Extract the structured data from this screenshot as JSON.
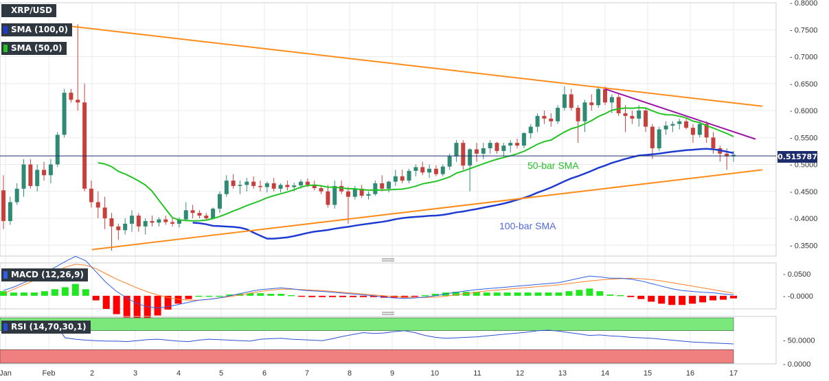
{
  "legend": {
    "symbol": "XRP/USD",
    "sma100": "SMA (100,0)",
    "sma50": "SMA (50,0)",
    "macd": "MACD (12,26,9)",
    "rsi": "RSI (14,70,30,1)"
  },
  "colors": {
    "bull": "#2f8a74",
    "bear": "#c7413c",
    "sma50": "#22c322",
    "sma100": "#1e3bd1",
    "trend": "#ff8c1a",
    "resistance": "#9b14a5",
    "macd_line": "#2d5fe0",
    "signal_line": "#ff7f24",
    "hist_pos": "#22e622",
    "hist_neg": "#ff0000",
    "rsi_line": "#2a4fd0",
    "rsi_overbought": "#7be87b",
    "rsi_oversold": "#f08080"
  },
  "current_price": "0.515787",
  "chart_data": [
    {
      "type": "candlestick",
      "title": "XRP/USD",
      "x_tick_labels": [
        "Jan",
        "Feb",
        "2",
        "3",
        "4",
        "5",
        "6",
        "7",
        "8",
        "9",
        "10",
        "11",
        "12",
        "13",
        "14",
        "15",
        "16",
        "17"
      ],
      "y_tick_labels": [
        "0.3500",
        "0.4000",
        "0.4500",
        "0.5000",
        "0.5500",
        "0.6000",
        "0.6500",
        "0.7000",
        "0.7500",
        "0.8000"
      ],
      "ylim": [
        0.33,
        0.8
      ],
      "candles": [
        [
          0.452,
          0.48,
          0.38,
          0.395
        ],
        [
          0.395,
          0.44,
          0.388,
          0.43
        ],
        [
          0.43,
          0.465,
          0.425,
          0.455
        ],
        [
          0.455,
          0.51,
          0.44,
          0.5
        ],
        [
          0.5,
          0.51,
          0.455,
          0.46
        ],
        [
          0.46,
          0.5,
          0.45,
          0.49
        ],
        [
          0.49,
          0.505,
          0.47,
          0.48
        ],
        [
          0.48,
          0.51,
          0.465,
          0.5
        ],
        [
          0.5,
          0.56,
          0.495,
          0.555
        ],
        [
          0.555,
          0.64,
          0.55,
          0.633
        ],
        [
          0.633,
          0.64,
          0.615,
          0.62
        ],
        [
          0.62,
          0.76,
          0.6,
          0.615
        ],
        [
          0.615,
          0.65,
          0.45,
          0.455
        ],
        [
          0.455,
          0.47,
          0.42,
          0.43
        ],
        [
          0.43,
          0.45,
          0.4,
          0.42
        ],
        [
          0.42,
          0.44,
          0.38,
          0.4
        ],
        [
          0.4,
          0.41,
          0.34,
          0.385
        ],
        [
          0.385,
          0.39,
          0.36,
          0.378
        ],
        [
          0.378,
          0.4,
          0.37,
          0.39
        ],
        [
          0.39,
          0.415,
          0.375,
          0.405
        ],
        [
          0.405,
          0.41,
          0.375,
          0.385
        ],
        [
          0.385,
          0.4,
          0.37,
          0.395
        ],
        [
          0.395,
          0.405,
          0.385,
          0.392
        ],
        [
          0.392,
          0.402,
          0.385,
          0.398
        ],
        [
          0.398,
          0.405,
          0.388,
          0.393
        ],
        [
          0.393,
          0.4,
          0.385,
          0.39
        ],
        [
          0.39,
          0.402,
          0.383,
          0.398
        ],
        [
          0.398,
          0.43,
          0.395,
          0.415
        ],
        [
          0.415,
          0.425,
          0.4,
          0.41
        ],
        [
          0.41,
          0.415,
          0.4,
          0.405
        ],
        [
          0.405,
          0.41,
          0.398,
          0.4
        ],
        [
          0.4,
          0.42,
          0.398,
          0.418
        ],
        [
          0.418,
          0.45,
          0.41,
          0.445
        ],
        [
          0.445,
          0.48,
          0.44,
          0.47
        ],
        [
          0.47,
          0.482,
          0.455,
          0.46
        ],
        [
          0.46,
          0.47,
          0.445,
          0.462
        ],
        [
          0.462,
          0.475,
          0.45,
          0.468
        ],
        [
          0.468,
          0.478,
          0.455,
          0.46
        ],
        [
          0.46,
          0.47,
          0.45,
          0.458
        ],
        [
          0.458,
          0.468,
          0.448,
          0.465
        ],
        [
          0.465,
          0.475,
          0.45,
          0.455
        ],
        [
          0.455,
          0.465,
          0.448,
          0.462
        ],
        [
          0.462,
          0.47,
          0.452,
          0.458
        ],
        [
          0.458,
          0.466,
          0.45,
          0.461
        ],
        [
          0.461,
          0.472,
          0.455,
          0.468
        ],
        [
          0.468,
          0.474,
          0.458,
          0.462
        ],
        [
          0.462,
          0.47,
          0.452,
          0.456
        ],
        [
          0.456,
          0.462,
          0.445,
          0.45
        ],
        [
          0.45,
          0.462,
          0.42,
          0.425
        ],
        [
          0.425,
          0.47,
          0.418,
          0.46
        ],
        [
          0.46,
          0.47,
          0.445,
          0.45
        ],
        [
          0.45,
          0.458,
          0.39,
          0.44
        ],
        [
          0.44,
          0.46,
          0.435,
          0.455
        ],
        [
          0.455,
          0.462,
          0.438,
          0.442
        ],
        [
          0.442,
          0.45,
          0.435,
          0.445
        ],
        [
          0.445,
          0.47,
          0.442,
          0.465
        ],
        [
          0.465,
          0.48,
          0.45,
          0.455
        ],
        [
          0.455,
          0.47,
          0.448,
          0.468
        ],
        [
          0.468,
          0.49,
          0.46,
          0.478
        ],
        [
          0.478,
          0.49,
          0.465,
          0.47
        ],
        [
          0.47,
          0.492,
          0.465,
          0.488
        ],
        [
          0.488,
          0.5,
          0.478,
          0.495
        ],
        [
          0.495,
          0.505,
          0.48,
          0.485
        ],
        [
          0.485,
          0.5,
          0.475,
          0.492
        ],
        [
          0.492,
          0.498,
          0.478,
          0.482
        ],
        [
          0.482,
          0.5,
          0.478,
          0.496
        ],
        [
          0.496,
          0.52,
          0.49,
          0.515
        ],
        [
          0.515,
          0.545,
          0.505,
          0.54
        ],
        [
          0.54,
          0.545,
          0.49,
          0.498
        ],
        [
          0.498,
          0.53,
          0.45,
          0.528
        ],
        [
          0.528,
          0.54,
          0.505,
          0.52
        ],
        [
          0.52,
          0.54,
          0.51,
          0.53
        ],
        [
          0.53,
          0.545,
          0.52,
          0.54
        ],
        [
          0.54,
          0.542,
          0.52,
          0.525
        ],
        [
          0.525,
          0.54,
          0.515,
          0.535
        ],
        [
          0.535,
          0.545,
          0.522,
          0.54
        ],
        [
          0.54,
          0.548,
          0.53,
          0.535
        ],
        [
          0.535,
          0.56,
          0.53,
          0.558
        ],
        [
          0.558,
          0.575,
          0.548,
          0.57
        ],
        [
          0.57,
          0.595,
          0.56,
          0.59
        ],
        [
          0.59,
          0.6,
          0.575,
          0.585
        ],
        [
          0.585,
          0.595,
          0.57,
          0.58
        ],
        [
          0.58,
          0.61,
          0.575,
          0.605
        ],
        [
          0.605,
          0.645,
          0.6,
          0.63
        ],
        [
          0.63,
          0.64,
          0.6,
          0.605
        ],
        [
          0.605,
          0.61,
          0.54,
          0.58
        ],
        [
          0.58,
          0.62,
          0.56,
          0.615
        ],
        [
          0.615,
          0.63,
          0.6,
          0.61
        ],
        [
          0.61,
          0.645,
          0.605,
          0.64
        ],
        [
          0.64,
          0.645,
          0.61,
          0.615
        ],
        [
          0.615,
          0.63,
          0.595,
          0.625
        ],
        [
          0.625,
          0.63,
          0.59,
          0.595
        ],
        [
          0.595,
          0.61,
          0.56,
          0.59
        ],
        [
          0.59,
          0.6,
          0.575,
          0.585
        ],
        [
          0.585,
          0.61,
          0.57,
          0.6
        ],
        [
          0.6,
          0.605,
          0.56,
          0.57
        ],
        [
          0.57,
          0.575,
          0.51,
          0.53
        ],
        [
          0.53,
          0.57,
          0.525,
          0.565
        ],
        [
          0.565,
          0.58,
          0.555,
          0.572
        ],
        [
          0.572,
          0.58,
          0.56,
          0.575
        ],
        [
          0.575,
          0.585,
          0.565,
          0.58
        ],
        [
          0.58,
          0.585,
          0.565,
          0.568
        ],
        [
          0.568,
          0.575,
          0.54,
          0.555
        ],
        [
          0.555,
          0.58,
          0.55,
          0.575
        ],
        [
          0.575,
          0.58,
          0.54,
          0.55
        ],
        [
          0.55,
          0.56,
          0.52,
          0.53
        ],
        [
          0.53,
          0.535,
          0.505,
          0.52
        ],
        [
          0.52,
          0.53,
          0.49,
          0.515
        ],
        [
          0.515,
          0.525,
          0.505,
          0.518
        ]
      ]
    },
    {
      "type": "line",
      "title": "MACD (12,26,9)",
      "y_tick_labels": [
        "-0.0000",
        "0.0500"
      ],
      "ylim": [
        -0.03,
        0.075
      ],
      "macd": [
        0.012,
        0.02,
        0.03,
        0.04,
        0.052,
        0.065,
        0.078,
        0.09,
        0.08,
        0.055,
        0.03,
        0.01,
        -0.005,
        -0.018,
        -0.025,
        -0.028,
        -0.025,
        -0.02,
        -0.015,
        -0.01,
        -0.008,
        -0.005,
        0.0,
        0.005,
        0.01,
        0.014,
        0.016,
        0.018,
        0.016,
        0.013,
        0.011,
        0.01,
        0.008,
        0.006,
        0.004,
        0.002,
        0.0,
        -0.003,
        -0.005,
        -0.006,
        -0.005,
        -0.003,
        0.0,
        0.004,
        0.008,
        0.011,
        0.014,
        0.016,
        0.018,
        0.02,
        0.022,
        0.024,
        0.026,
        0.028,
        0.03,
        0.035,
        0.04,
        0.045,
        0.043,
        0.04,
        0.04,
        0.038,
        0.034,
        0.028,
        0.022,
        0.016,
        0.012,
        0.01,
        0.008,
        0.007,
        0.004,
        0.002
      ],
      "signal": [
        0.005,
        0.015,
        0.025,
        0.035,
        0.045,
        0.055,
        0.065,
        0.072,
        0.07,
        0.062,
        0.05,
        0.038,
        0.028,
        0.018,
        0.009,
        0.002,
        -0.004,
        -0.008,
        -0.01,
        -0.01,
        -0.008,
        -0.005,
        -0.002,
        0.002,
        0.006,
        0.01,
        0.013,
        0.015,
        0.015,
        0.014,
        0.013,
        0.012,
        0.01,
        0.008,
        0.006,
        0.004,
        0.002,
        0.0,
        -0.002,
        -0.003,
        -0.004,
        -0.004,
        -0.003,
        -0.001,
        0.002,
        0.005,
        0.008,
        0.011,
        0.013,
        0.015,
        0.017,
        0.019,
        0.021,
        0.023,
        0.025,
        0.028,
        0.031,
        0.034,
        0.036,
        0.038,
        0.039,
        0.04,
        0.039,
        0.037,
        0.034,
        0.03,
        0.026,
        0.022,
        0.018,
        0.014,
        0.01,
        0.006
      ],
      "histogram_positive_to": 0.025
    },
    {
      "type": "line",
      "title": "RSI (14,70,30,1)",
      "y_tick_labels": [
        "0.0000",
        "50.0000"
      ],
      "ylim": [
        0,
        100
      ],
      "levels": [
        30,
        70
      ],
      "rsi": [
        66,
        72,
        80,
        85,
        88,
        86,
        55,
        52,
        50,
        49,
        48,
        48,
        47,
        49,
        51,
        52,
        50,
        48,
        47,
        50,
        52,
        51,
        50,
        49,
        48,
        52,
        53,
        54,
        52,
        51,
        50,
        49,
        53,
        58,
        62,
        66,
        64,
        65,
        68,
        70,
        66,
        60,
        56,
        54,
        55,
        56,
        57,
        59,
        61,
        63,
        65,
        67,
        70,
        71,
        69,
        66,
        63,
        60,
        61,
        59,
        58,
        56,
        55,
        54,
        52,
        50,
        48,
        46,
        45,
        44,
        43,
        42
      ]
    }
  ],
  "annotations": {
    "sma50_label": "50-bar SMA",
    "sma100_label": "100-bar SMA"
  }
}
